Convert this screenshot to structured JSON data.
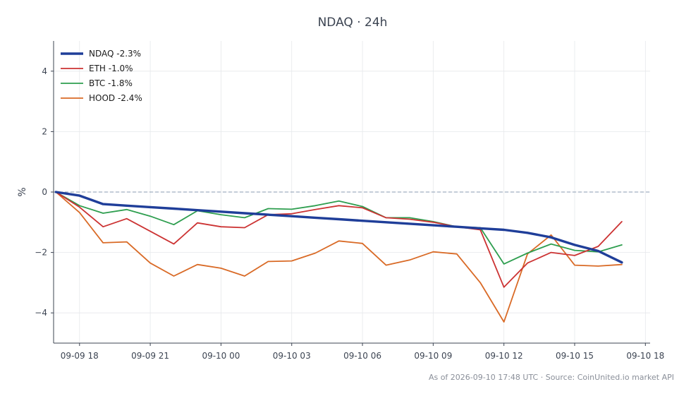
{
  "chart_data": {
    "type": "line",
    "title": "NDAQ · 24h",
    "ylabel": "%",
    "xlabel": "",
    "footnote": "As of 2026-09-10 17:48 UTC · Source: CoinUnited.io market API",
    "ylim": [
      -5,
      5
    ],
    "xlim": [
      "09-09 16:54",
      "09-10 18:12"
    ],
    "x_ticks": [
      "09-09 18",
      "09-09 21",
      "09-10 00",
      "09-10 03",
      "09-10 06",
      "09-10 09",
      "09-10 12",
      "09-10 15",
      "09-10 18"
    ],
    "x_tick_times": [
      "09-09 18:00",
      "09-09 21:00",
      "09-10 00:00",
      "09-10 03:00",
      "09-10 06:00",
      "09-10 09:00",
      "09-10 12:00",
      "09-10 15:00",
      "09-10 18:00"
    ],
    "y_ticks": [
      4,
      2,
      0,
      -2,
      -4
    ],
    "y_tick_labels": [
      "4",
      "2",
      "0",
      "−2",
      "−4"
    ],
    "grid": true,
    "reference_line": 0,
    "legend_position": "top-left",
    "x": [
      "09-09 17:00",
      "09-09 18:00",
      "09-09 19:00",
      "09-09 20:00",
      "09-09 21:00",
      "09-09 22:00",
      "09-09 23:00",
      "09-10 00:00",
      "09-10 01:00",
      "09-10 02:00",
      "09-10 03:00",
      "09-10 04:00",
      "09-10 05:00",
      "09-10 06:00",
      "09-10 07:00",
      "09-10 08:00",
      "09-10 09:00",
      "09-10 10:00",
      "09-10 11:00",
      "09-10 12:00",
      "09-10 13:00",
      "09-10 14:00",
      "09-10 15:00",
      "09-10 16:00",
      "09-10 17:00"
    ],
    "series": [
      {
        "name": "NDAQ -2.3%",
        "color": "#1f3e99",
        "values": [
          0.0,
          -0.12,
          -0.4,
          -0.45,
          -0.5,
          -0.55,
          -0.6,
          -0.65,
          -0.7,
          -0.75,
          -0.8,
          -0.85,
          -0.9,
          -0.95,
          -1.0,
          -1.05,
          -1.1,
          -1.15,
          -1.2,
          -1.25,
          -1.35,
          -1.5,
          -1.75,
          -1.95,
          -2.33
        ]
      },
      {
        "name": "ETH -1.0%",
        "color": "#cc3333",
        "values": [
          0.0,
          -0.5,
          -1.15,
          -0.88,
          -1.3,
          -1.72,
          -1.02,
          -1.15,
          -1.18,
          -0.75,
          -0.72,
          -0.58,
          -0.45,
          -0.52,
          -0.85,
          -0.9,
          -1.0,
          -1.15,
          -1.25,
          -3.15,
          -2.35,
          -2.0,
          -2.1,
          -1.8,
          -0.98
        ]
      },
      {
        "name": "BTC -1.8%",
        "color": "#2e9e4f",
        "values": [
          0.0,
          -0.45,
          -0.7,
          -0.58,
          -0.8,
          -1.08,
          -0.62,
          -0.75,
          -0.85,
          -0.55,
          -0.57,
          -0.45,
          -0.3,
          -0.48,
          -0.85,
          -0.85,
          -0.98,
          -1.15,
          -1.18,
          -2.38,
          -2.02,
          -1.72,
          -1.93,
          -1.98,
          -1.75
        ]
      },
      {
        "name": "HOOD -2.4%",
        "color": "#d96a26",
        "values": [
          0.0,
          -0.68,
          -1.68,
          -1.65,
          -2.35,
          -2.78,
          -2.4,
          -2.52,
          -2.78,
          -2.3,
          -2.28,
          -2.02,
          -1.62,
          -1.7,
          -2.42,
          -2.25,
          -1.98,
          -2.05,
          -3.0,
          -4.3,
          -2.05,
          -1.42,
          -2.42,
          -2.45,
          -2.4
        ]
      }
    ]
  }
}
